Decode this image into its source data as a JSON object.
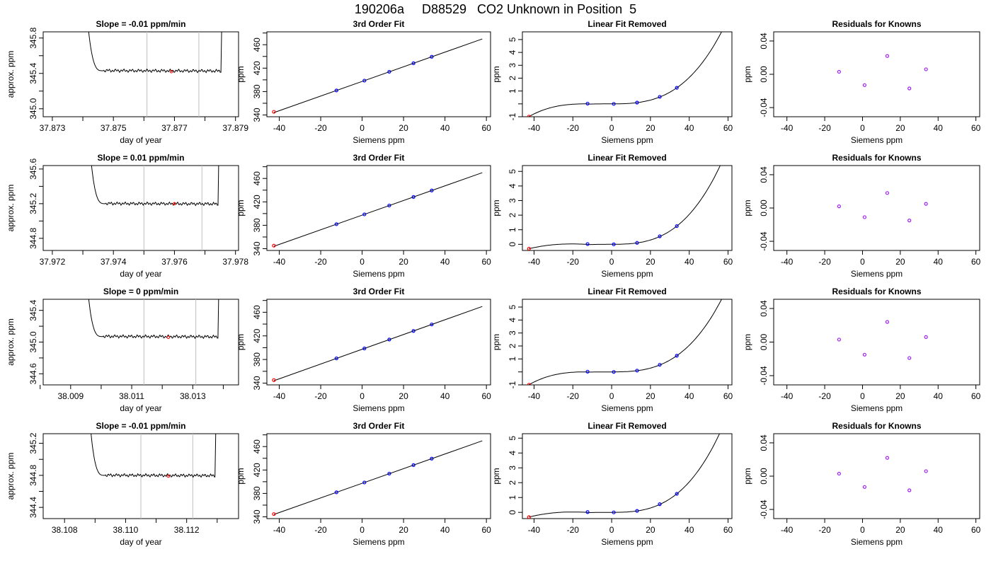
{
  "figure_title": "190206a     D88529   CO2 Unknown in Position  5",
  "colors": {
    "trace": "#000000",
    "gridline": "#bebebe",
    "unknown_point": "#ff0000",
    "known_point": "#0000ff",
    "residual_point": "#a020f0"
  },
  "chart_data": [
    {
      "type": "line",
      "panel": "row1-trace",
      "title": "Slope =  -0.01  ppm/min",
      "xlabel": "day of year",
      "ylabel": "approx. ppm",
      "xlim": [
        37.8727,
        37.8791
      ],
      "ylim": [
        344.91,
        345.87
      ],
      "xticks": [
        37.873,
        37.875,
        37.877,
        37.879
      ],
      "xtick_labels": [
        "37.873",
        "37.875",
        "37.877",
        "37.879"
      ],
      "xticks_minor": [
        37.874,
        37.876,
        37.878
      ],
      "yticks": [
        345.0,
        345.4,
        345.8
      ],
      "ytick_labels": [
        "345.0",
        "345.4",
        "345.8"
      ],
      "yticks_minor": [
        345.2,
        345.6
      ],
      "vlines": [
        37.8761,
        37.8778
      ],
      "trace_plateau": 345.43,
      "trace_x_start": 37.874,
      "trace_x_end": 37.8786,
      "marked_point": {
        "x": 37.8769,
        "y": 345.42
      }
    },
    {
      "type": "line",
      "panel": "row1-fit",
      "title": "3rd Order Fit",
      "xlabel": "Siemens ppm",
      "ylabel": "ppm",
      "xlim": [
        -46,
        62
      ],
      "ylim": [
        337,
        482
      ],
      "xticks": [
        -40,
        -20,
        0,
        20,
        40,
        60
      ],
      "yticks": [
        340,
        380,
        420,
        460
      ],
      "yticks_minor": [
        360,
        400,
        440,
        480
      ],
      "unknown": {
        "x": -42.6,
        "y": 345.4
      },
      "knowns": [
        {
          "x": -12.4,
          "y": 381.9
        },
        {
          "x": 1.1,
          "y": 398.7
        },
        {
          "x": 13.1,
          "y": 413.8
        },
        {
          "x": 24.8,
          "y": 428.4
        },
        {
          "x": 33.6,
          "y": 439.4
        }
      ]
    },
    {
      "type": "line",
      "panel": "row1-linear-removed",
      "title": "Linear Fit Removed",
      "xlabel": "Siemens ppm",
      "ylabel": "ppm",
      "xlim": [
        -46,
        62
      ],
      "ylim": [
        -1.0,
        5.6
      ],
      "xticks": [
        -40,
        -20,
        0,
        20,
        40,
        60
      ],
      "yticks": [
        -1,
        1,
        2,
        3,
        4,
        5
      ],
      "yticks_minor": [
        0
      ],
      "curve_minus_offset": -0.99,
      "unknown": {
        "x": -42.6,
        "y": -0.99
      },
      "knowns": [
        {
          "x": -12.4,
          "y": 0.02
        },
        {
          "x": 1.1,
          "y": 0.0
        },
        {
          "x": 13.1,
          "y": 0.1
        },
        {
          "x": 24.8,
          "y": 0.55
        },
        {
          "x": 33.6,
          "y": 1.25
        }
      ]
    },
    {
      "type": "scatter",
      "panel": "row1-residuals",
      "title": "Residuals for Knowns",
      "xlabel": "Siemens ppm",
      "ylabel": "ppm",
      "xlim": [
        -47,
        62
      ],
      "ylim": [
        -0.051,
        0.051
      ],
      "xticks": [
        -40,
        -20,
        0,
        20,
        40,
        60
      ],
      "yticks": [
        -0.04,
        0.0,
        0.04
      ],
      "ytick_labels": [
        "-0.04",
        "0.00",
        "0.04"
      ],
      "points": [
        {
          "x": -12.4,
          "y": 0.003
        },
        {
          "x": 1.1,
          "y": -0.013
        },
        {
          "x": 13.1,
          "y": 0.022
        },
        {
          "x": 24.8,
          "y": -0.017
        },
        {
          "x": 33.6,
          "y": 0.006
        }
      ]
    },
    {
      "type": "line",
      "panel": "row2-trace",
      "title": "Slope =  0.01  ppm/min",
      "xlabel": "day of year",
      "ylabel": "approx. ppm",
      "xlim": [
        37.9717,
        37.9781
      ],
      "ylim": [
        344.66,
        345.64
      ],
      "xticks": [
        37.972,
        37.974,
        37.976,
        37.978
      ],
      "xtick_labels": [
        "37.972",
        "37.974",
        "37.976",
        "37.978"
      ],
      "xticks_minor": [
        37.973,
        37.975,
        37.977
      ],
      "yticks": [
        344.8,
        345.2,
        345.6
      ],
      "ytick_labels": [
        "344.8",
        "345.2",
        "345.6"
      ],
      "yticks_minor": [
        345.0,
        345.4
      ],
      "vlines": [
        37.975,
        37.9769
      ],
      "trace_plateau": 345.2,
      "trace_x_start": 37.9731,
      "trace_x_end": 37.9775,
      "marked_point": {
        "x": 37.976,
        "y": 345.2
      }
    },
    {
      "type": "line",
      "panel": "row2-fit",
      "title": "3rd Order Fit",
      "xlabel": "Siemens ppm",
      "ylabel": "ppm",
      "xlim": [
        -46,
        62
      ],
      "ylim": [
        337,
        482
      ],
      "xticks": [
        -40,
        -20,
        0,
        20,
        40,
        60
      ],
      "yticks": [
        340,
        380,
        420,
        460
      ],
      "yticks_minor": [
        360,
        400,
        440,
        480
      ],
      "unknown": {
        "x": -42.6,
        "y": 345.2
      },
      "knowns": [
        {
          "x": -12.4,
          "y": 381.9
        },
        {
          "x": 1.1,
          "y": 398.7
        },
        {
          "x": 13.1,
          "y": 413.8
        },
        {
          "x": 24.8,
          "y": 428.4
        },
        {
          "x": 33.6,
          "y": 439.4
        }
      ]
    },
    {
      "type": "line",
      "panel": "row2-linear-removed",
      "title": "Linear Fit Removed",
      "xlabel": "Siemens ppm",
      "ylabel": "ppm",
      "xlim": [
        -46,
        62
      ],
      "ylim": [
        -0.42,
        5.4
      ],
      "xticks": [
        -40,
        -20,
        0,
        20,
        40,
        60
      ],
      "yticks": [
        0,
        1,
        2,
        3,
        4,
        5
      ],
      "curve_minus_offset": -0.3,
      "unknown": {
        "x": -42.6,
        "y": -0.3
      },
      "knowns": [
        {
          "x": -12.4,
          "y": 0.02
        },
        {
          "x": 1.1,
          "y": 0.0
        },
        {
          "x": 13.1,
          "y": 0.1
        },
        {
          "x": 24.8,
          "y": 0.55
        },
        {
          "x": 33.6,
          "y": 1.25
        }
      ]
    },
    {
      "type": "scatter",
      "panel": "row2-residuals",
      "title": "Residuals for Knowns",
      "xlabel": "Siemens ppm",
      "ylabel": "ppm",
      "xlim": [
        -47,
        62
      ],
      "ylim": [
        -0.051,
        0.051
      ],
      "xticks": [
        -40,
        -20,
        0,
        20,
        40,
        60
      ],
      "yticks": [
        -0.04,
        0.0,
        0.04
      ],
      "ytick_labels": [
        "-0.04",
        "0.00",
        "0.04"
      ],
      "points": [
        {
          "x": -12.4,
          "y": 0.002
        },
        {
          "x": 1.1,
          "y": -0.011
        },
        {
          "x": 13.1,
          "y": 0.018
        },
        {
          "x": 24.8,
          "y": -0.015
        },
        {
          "x": 33.6,
          "y": 0.005
        }
      ]
    },
    {
      "type": "line",
      "panel": "row3-trace",
      "title": "Slope =  0  ppm/min",
      "xlabel": "day of year",
      "ylabel": "approx. ppm",
      "xlim": [
        38.0081,
        38.0145
      ],
      "ylim": [
        344.46,
        345.54
      ],
      "xticks": [
        38.009,
        38.011,
        38.013
      ],
      "xtick_labels": [
        "38.009",
        "38.011",
        "38.013"
      ],
      "xticks_minor": [
        38.008,
        38.01,
        38.012,
        38.014
      ],
      "yticks": [
        344.6,
        345.0,
        345.4
      ],
      "ytick_labels": [
        "344.6",
        "345.0",
        "345.4"
      ],
      "yticks_minor": [
        344.8,
        345.2
      ],
      "vlines": [
        38.0114,
        38.0131
      ],
      "trace_plateau": 345.07,
      "trace_x_start": 38.0094,
      "trace_x_end": 38.0139,
      "marked_point": {
        "x": 38.0122,
        "y": 345.06
      }
    },
    {
      "type": "line",
      "panel": "row3-fit",
      "title": "3rd Order Fit",
      "xlabel": "Siemens ppm",
      "ylabel": "ppm",
      "xlim": [
        -46,
        62
      ],
      "ylim": [
        337,
        482
      ],
      "xticks": [
        -40,
        -20,
        0,
        20,
        40,
        60
      ],
      "yticks": [
        340,
        380,
        420,
        460
      ],
      "yticks_minor": [
        360,
        400,
        440,
        480
      ],
      "unknown": {
        "x": -42.6,
        "y": 345.1
      },
      "knowns": [
        {
          "x": -12.4,
          "y": 381.9
        },
        {
          "x": 1.1,
          "y": 398.7
        },
        {
          "x": 13.1,
          "y": 413.8
        },
        {
          "x": 24.8,
          "y": 428.4
        },
        {
          "x": 33.6,
          "y": 439.4
        }
      ]
    },
    {
      "type": "line",
      "panel": "row3-linear-removed",
      "title": "Linear Fit Removed",
      "xlabel": "Siemens ppm",
      "ylabel": "ppm",
      "xlim": [
        -46,
        62
      ],
      "ylim": [
        -1.0,
        5.6
      ],
      "xticks": [
        -40,
        -20,
        0,
        20,
        40,
        60
      ],
      "yticks": [
        -1,
        1,
        2,
        3,
        4,
        5
      ],
      "yticks_minor": [
        0
      ],
      "curve_minus_offset": -0.99,
      "unknown": {
        "x": -42.6,
        "y": -0.99
      },
      "knowns": [
        {
          "x": -12.4,
          "y": 0.02
        },
        {
          "x": 1.1,
          "y": 0.0
        },
        {
          "x": 13.1,
          "y": 0.1
        },
        {
          "x": 24.8,
          "y": 0.55
        },
        {
          "x": 33.6,
          "y": 1.25
        }
      ]
    },
    {
      "type": "scatter",
      "panel": "row3-residuals",
      "title": "Residuals for Knowns",
      "xlabel": "Siemens ppm",
      "ylabel": "ppm",
      "xlim": [
        -47,
        62
      ],
      "ylim": [
        -0.051,
        0.051
      ],
      "xticks": [
        -40,
        -20,
        0,
        20,
        40,
        60
      ],
      "yticks": [
        -0.04,
        0.0,
        0.04
      ],
      "ytick_labels": [
        "-0.04",
        "0.00",
        "0.04"
      ],
      "points": [
        {
          "x": -12.4,
          "y": 0.003
        },
        {
          "x": 1.1,
          "y": -0.015
        },
        {
          "x": 13.1,
          "y": 0.024
        },
        {
          "x": 24.8,
          "y": -0.019
        },
        {
          "x": 33.6,
          "y": 0.006
        }
      ]
    },
    {
      "type": "line",
      "panel": "row4-trace",
      "title": "Slope =  -0.01  ppm/min",
      "xlabel": "day of year",
      "ylabel": "approx. ppm",
      "xlim": [
        38.1073,
        38.1137
      ],
      "ylim": [
        344.26,
        345.32
      ],
      "xticks": [
        38.108,
        38.11,
        38.112
      ],
      "xtick_labels": [
        "38.108",
        "38.110",
        "38.112"
      ],
      "xticks_minor": [
        38.109,
        38.111,
        38.113
      ],
      "yticks": [
        344.4,
        344.8,
        345.2
      ],
      "ytick_labels": [
        "344.4",
        "344.8",
        "345.2"
      ],
      "yticks_minor": [
        344.6,
        345.0
      ],
      "vlines": [
        38.1105,
        38.1122
      ],
      "trace_plateau": 344.8,
      "trace_x_start": 38.1087,
      "trace_x_end": 38.113,
      "marked_point": {
        "x": 38.1114,
        "y": 344.79
      }
    },
    {
      "type": "line",
      "panel": "row4-fit",
      "title": "3rd Order Fit",
      "xlabel": "Siemens ppm",
      "ylabel": "ppm",
      "xlim": [
        -46,
        62
      ],
      "ylim": [
        337,
        482
      ],
      "xticks": [
        -40,
        -20,
        0,
        20,
        40,
        60
      ],
      "yticks": [
        340,
        380,
        420,
        460
      ],
      "yticks_minor": [
        360,
        400,
        440,
        480
      ],
      "unknown": {
        "x": -42.6,
        "y": 344.8
      },
      "knowns": [
        {
          "x": -12.4,
          "y": 381.9
        },
        {
          "x": 1.1,
          "y": 398.7
        },
        {
          "x": 13.1,
          "y": 413.8
        },
        {
          "x": 24.8,
          "y": 428.4
        },
        {
          "x": 33.6,
          "y": 439.4
        }
      ]
    },
    {
      "type": "line",
      "panel": "row4-linear-removed",
      "title": "Linear Fit Removed",
      "xlabel": "Siemens ppm",
      "ylabel": "ppm",
      "xlim": [
        -46,
        62
      ],
      "ylim": [
        -0.42,
        5.3
      ],
      "xticks": [
        -40,
        -20,
        0,
        20,
        40,
        60
      ],
      "yticks": [
        0,
        1,
        2,
        3,
        4,
        5
      ],
      "curve_minus_offset": -0.32,
      "unknown": {
        "x": -42.6,
        "y": -0.32
      },
      "knowns": [
        {
          "x": -12.4,
          "y": 0.02
        },
        {
          "x": 1.1,
          "y": 0.0
        },
        {
          "x": 13.1,
          "y": 0.1
        },
        {
          "x": 24.8,
          "y": 0.55
        },
        {
          "x": 33.6,
          "y": 1.25
        }
      ]
    },
    {
      "type": "scatter",
      "panel": "row4-residuals",
      "title": "Residuals for Knowns",
      "xlabel": "Siemens ppm",
      "ylabel": "ppm",
      "xlim": [
        -47,
        62
      ],
      "ylim": [
        -0.051,
        0.051
      ],
      "xticks": [
        -40,
        -20,
        0,
        20,
        40,
        60
      ],
      "yticks": [
        -0.04,
        0.0,
        0.04
      ],
      "ytick_labels": [
        "-0.04",
        "0.00",
        "0.04"
      ],
      "points": [
        {
          "x": -12.4,
          "y": 0.003
        },
        {
          "x": 1.1,
          "y": -0.013
        },
        {
          "x": 13.1,
          "y": 0.022
        },
        {
          "x": 24.8,
          "y": -0.017
        },
        {
          "x": 33.6,
          "y": 0.006
        }
      ]
    }
  ]
}
